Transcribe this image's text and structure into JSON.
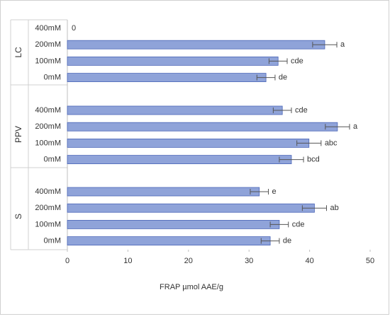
{
  "chart_data": {
    "type": "bar",
    "orientation": "horizontal",
    "x_label": "FRAP µmol AAE/g",
    "xlim": [
      0,
      50
    ],
    "xticks": [
      0,
      10,
      20,
      30,
      40,
      50
    ],
    "color": "#8fa3d9",
    "groups": [
      {
        "name": "LC",
        "categories": [
          "400mM",
          "200mM",
          "100mM",
          "0mM"
        ],
        "values": [
          0,
          42.5,
          34.8,
          32.8
        ],
        "errors": [
          0,
          2.0,
          1.5,
          1.5
        ],
        "letters": [
          null,
          "a",
          "cde",
          "de"
        ]
      },
      {
        "name": "PPV",
        "categories": [
          "400mM",
          "200mM",
          "100mM",
          "0mM"
        ],
        "values": [
          35.5,
          44.6,
          39.9,
          37.0
        ],
        "errors": [
          1.5,
          2.0,
          2.0,
          2.0
        ],
        "letters": [
          "cde",
          "a",
          "abc",
          "bcd"
        ]
      },
      {
        "name": "S",
        "categories": [
          "400mM",
          "200mM",
          "100mM",
          "0mM"
        ],
        "values": [
          31.7,
          40.8,
          35.0,
          33.5
        ],
        "errors": [
          1.5,
          2.0,
          1.5,
          1.5
        ],
        "letters": [
          "e",
          "ab",
          "cde",
          "de"
        ]
      }
    ]
  }
}
